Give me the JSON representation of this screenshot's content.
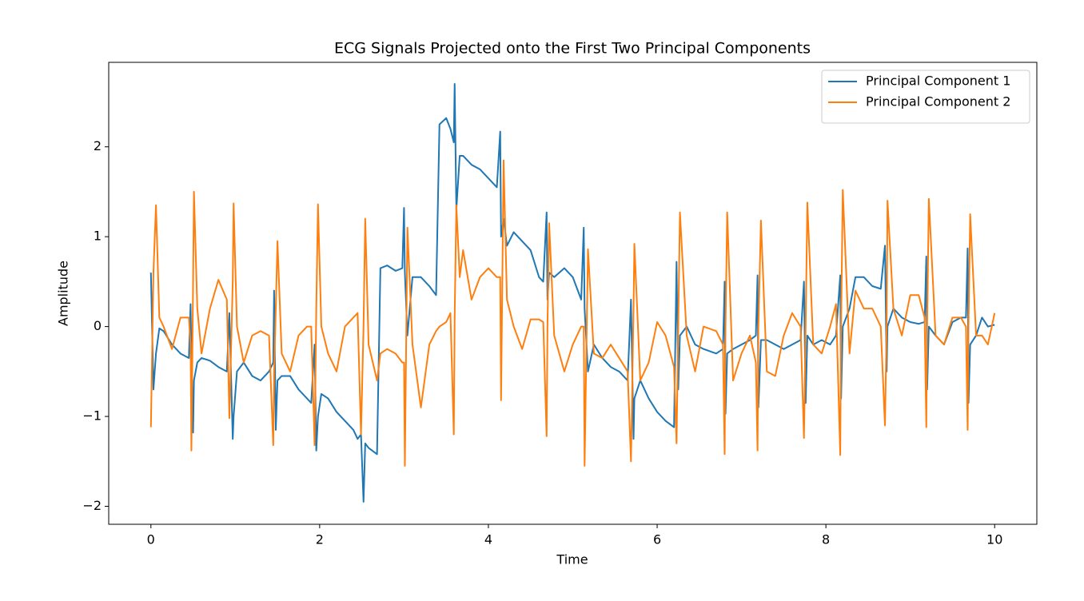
{
  "chart_data": {
    "type": "line",
    "title": "ECG Signals Projected onto the First Two Principal Components",
    "x_label": "Time",
    "y_label": "Amplitude",
    "legend": "upper right",
    "grid": false,
    "xlim": [
      -0.5,
      10.5
    ],
    "ylim": [
      -2.2,
      2.94
    ],
    "xticks": [
      0,
      2,
      4,
      6,
      8,
      10
    ],
    "yticks": [
      {
        "value": -2,
        "label": "−2"
      },
      {
        "value": -1,
        "label": "−1"
      },
      0,
      1,
      2
    ],
    "x": [
      0,
      0.03,
      0.06,
      0.1,
      0.15,
      0.25,
      0.35,
      0.45,
      0.47,
      0.48,
      0.5,
      0.51,
      0.55,
      0.6,
      0.7,
      0.8,
      0.9,
      0.93,
      0.97,
      0.98,
      1.02,
      1.1,
      1.2,
      1.3,
      1.4,
      1.45,
      1.46,
      1.48,
      1.5,
      1.55,
      1.65,
      1.75,
      1.85,
      1.9,
      1.94,
      1.96,
      1.98,
      2.02,
      2.1,
      2.2,
      2.3,
      2.4,
      2.45,
      2.49,
      2.52,
      2.54,
      2.58,
      2.68,
      2.72,
      2.8,
      2.9,
      2.98,
      3.0,
      3.01,
      3.04,
      3.1,
      3.2,
      3.3,
      3.38,
      3.42,
      3.5,
      3.55,
      3.59,
      3.6,
      3.62,
      3.66,
      3.7,
      3.8,
      3.9,
      4.0,
      4.1,
      4.14,
      4.15,
      4.18,
      4.22,
      4.3,
      4.4,
      4.5,
      4.6,
      4.65,
      4.69,
      4.7,
      4.72,
      4.78,
      4.9,
      5.0,
      5.1,
      5.13,
      5.14,
      5.18,
      5.25,
      5.35,
      5.45,
      5.55,
      5.65,
      5.69,
      5.72,
      5.73,
      5.8,
      5.9,
      6.0,
      6.1,
      6.2,
      6.23,
      6.25,
      6.27,
      6.35,
      6.45,
      6.55,
      6.7,
      6.78,
      6.8,
      6.81,
      6.83,
      6.9,
      7.0,
      7.1,
      7.17,
      7.19,
      7.2,
      7.23,
      7.3,
      7.4,
      7.5,
      7.6,
      7.7,
      7.74,
      7.76,
      7.78,
      7.85,
      7.95,
      8.05,
      8.12,
      8.17,
      8.18,
      8.2,
      8.28,
      8.35,
      8.45,
      8.55,
      8.65,
      8.7,
      8.72,
      8.73,
      8.8,
      8.9,
      9.0,
      9.1,
      9.17,
      9.19,
      9.2,
      9.22,
      9.3,
      9.4,
      9.5,
      9.6,
      9.66,
      9.68,
      9.69,
      9.71,
      9.78,
      9.85,
      9.92,
      10.0
    ],
    "series": [
      {
        "name": "Principal Component 1",
        "color": "#1f77b4",
        "values": [
          0.6,
          -0.7,
          -0.3,
          -0.02,
          -0.05,
          -0.2,
          -0.3,
          -0.35,
          0.25,
          -0.3,
          -1.18,
          -0.6,
          -0.4,
          -0.35,
          -0.38,
          -0.45,
          -0.5,
          0.15,
          -1.25,
          -1.0,
          -0.5,
          -0.4,
          -0.55,
          -0.6,
          -0.5,
          -0.4,
          0.4,
          -1.15,
          -0.6,
          -0.55,
          -0.55,
          -0.7,
          -0.8,
          -0.85,
          -0.2,
          -1.38,
          -1.0,
          -0.75,
          -0.8,
          -0.95,
          -1.05,
          -1.15,
          -1.25,
          -1.2,
          -1.95,
          -1.3,
          -1.35,
          -1.42,
          0.65,
          0.68,
          0.62,
          0.65,
          1.32,
          0.6,
          -0.1,
          0.55,
          0.55,
          0.45,
          0.35,
          2.25,
          2.32,
          2.2,
          2.05,
          2.7,
          1.3,
          1.9,
          1.9,
          1.8,
          1.75,
          1.65,
          1.55,
          2.17,
          1.0,
          1.2,
          0.9,
          1.05,
          0.95,
          0.85,
          0.55,
          0.5,
          1.27,
          0.3,
          0.6,
          0.55,
          0.65,
          0.55,
          0.3,
          1.1,
          0.2,
          -0.5,
          -0.2,
          -0.35,
          -0.45,
          -0.5,
          -0.6,
          0.3,
          -1.25,
          -0.8,
          -0.6,
          -0.8,
          -0.95,
          -1.05,
          -1.12,
          0.72,
          -0.7,
          -0.1,
          0.0,
          -0.2,
          -0.25,
          -0.3,
          -0.25,
          0.5,
          -0.97,
          -0.3,
          -0.25,
          -0.2,
          -0.15,
          -0.1,
          0.57,
          -0.9,
          -0.15,
          -0.15,
          -0.2,
          -0.25,
          -0.2,
          -0.15,
          0.5,
          -0.85,
          -0.1,
          -0.2,
          -0.15,
          -0.2,
          -0.1,
          0.57,
          -0.8,
          0.0,
          0.2,
          0.55,
          0.55,
          0.45,
          0.42,
          0.9,
          -0.5,
          0.0,
          0.2,
          0.1,
          0.05,
          0.03,
          0.05,
          0.78,
          -0.7,
          0.0,
          -0.1,
          -0.2,
          0.05,
          0.1,
          0.1,
          0.87,
          -0.85,
          -0.2,
          -0.1,
          0.1,
          0.0,
          0.02
        ]
      },
      {
        "name": "Principal Component 2",
        "color": "#ff7f0e",
        "values": [
          -1.12,
          0.6,
          1.35,
          0.1,
          0.0,
          -0.25,
          0.1,
          0.1,
          -0.2,
          -1.38,
          0.5,
          1.5,
          0.2,
          -0.3,
          0.2,
          0.52,
          0.3,
          -1.02,
          0.5,
          1.37,
          0.0,
          -0.4,
          -0.1,
          -0.05,
          -0.1,
          -1.32,
          -0.5,
          0.2,
          0.95,
          -0.3,
          -0.5,
          -0.1,
          0.0,
          0.0,
          -1.32,
          0.2,
          1.36,
          0.0,
          -0.3,
          -0.5,
          0.0,
          0.1,
          0.15,
          -1.2,
          0.0,
          1.2,
          -0.2,
          -0.6,
          -0.3,
          -0.25,
          -0.3,
          -0.4,
          -0.4,
          -1.55,
          1.1,
          -0.2,
          -0.9,
          -0.2,
          -0.05,
          0.0,
          0.05,
          0.15,
          -1.2,
          0.1,
          1.35,
          0.55,
          0.85,
          0.3,
          0.55,
          0.65,
          0.55,
          0.55,
          -0.82,
          1.85,
          0.3,
          0.0,
          -0.25,
          0.08,
          0.08,
          0.05,
          -1.22,
          0.0,
          1.15,
          -0.1,
          -0.5,
          -0.2,
          0.0,
          0.0,
          -1.55,
          0.86,
          -0.3,
          -0.35,
          -0.2,
          -0.35,
          -0.5,
          -1.5,
          0.2,
          0.92,
          -0.6,
          -0.4,
          0.05,
          -0.1,
          -0.45,
          -1.3,
          0.0,
          1.27,
          -0.1,
          -0.5,
          0.0,
          -0.05,
          -0.2,
          -1.42,
          0.0,
          1.27,
          -0.6,
          -0.3,
          -0.1,
          -0.4,
          -1.38,
          0.0,
          1.18,
          -0.5,
          -0.55,
          -0.1,
          0.15,
          0.0,
          -1.24,
          0.0,
          1.38,
          -0.2,
          -0.3,
          0.0,
          0.25,
          -1.43,
          0.0,
          1.52,
          -0.3,
          0.4,
          0.2,
          0.2,
          0.0,
          -1.1,
          0.0,
          1.4,
          0.2,
          -0.1,
          0.35,
          0.35,
          0.1,
          -1.12,
          0.0,
          1.42,
          -0.1,
          -0.2,
          0.1,
          0.1,
          0.0,
          -1.15,
          0.0,
          1.25,
          -0.1,
          -0.1,
          -0.2,
          0.15
        ]
      }
    ]
  }
}
